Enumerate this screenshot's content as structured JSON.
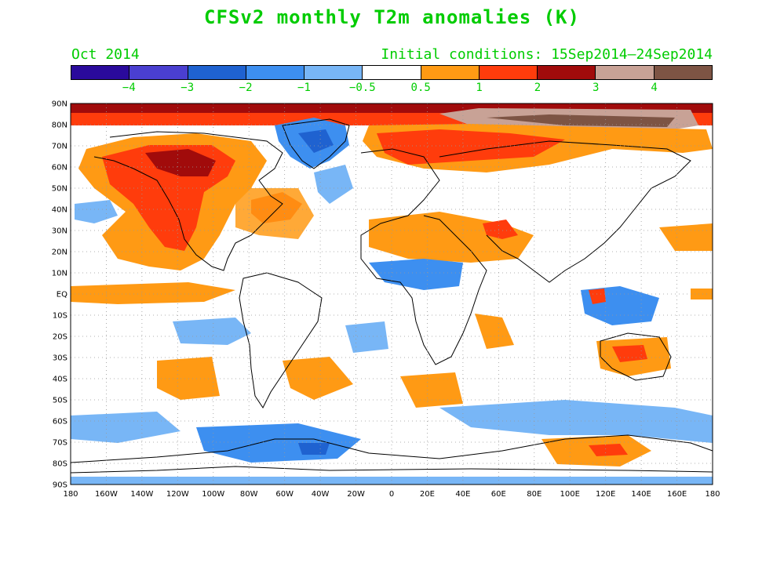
{
  "title": "CFSv2 monthly T2m anomalies (K)",
  "subtitle_left": "Oct 2014",
  "subtitle_right": "Initial conditions: 15Sep2014–24Sep2014",
  "text_color": "#00cc00",
  "colorbar": {
    "colors": [
      "#2a0a9c",
      "#4a3fd0",
      "#1f62d0",
      "#3d8ff0",
      "#78b6f6",
      "#ffffff",
      "#ff9a14",
      "#ff3c0c",
      "#a10b0b",
      "#c8a296",
      "#7d5444"
    ],
    "labels": [
      "−4",
      "−3",
      "−2",
      "−1",
      "−0.5",
      "0.5",
      "1",
      "2",
      "3",
      "4"
    ]
  },
  "map": {
    "lat_labels": [
      "90N",
      "80N",
      "70N",
      "60N",
      "50N",
      "40N",
      "30N",
      "20N",
      "10N",
      "EQ",
      "10S",
      "20S",
      "30S",
      "40S",
      "50S",
      "60S",
      "70S",
      "80S",
      "90S"
    ],
    "lon_labels": [
      "180",
      "160W",
      "140W",
      "120W",
      "100W",
      "80W",
      "60W",
      "40W",
      "20W",
      "0",
      "20E",
      "40E",
      "60E",
      "80E",
      "100E",
      "120E",
      "140E",
      "160E",
      "180"
    ]
  }
}
